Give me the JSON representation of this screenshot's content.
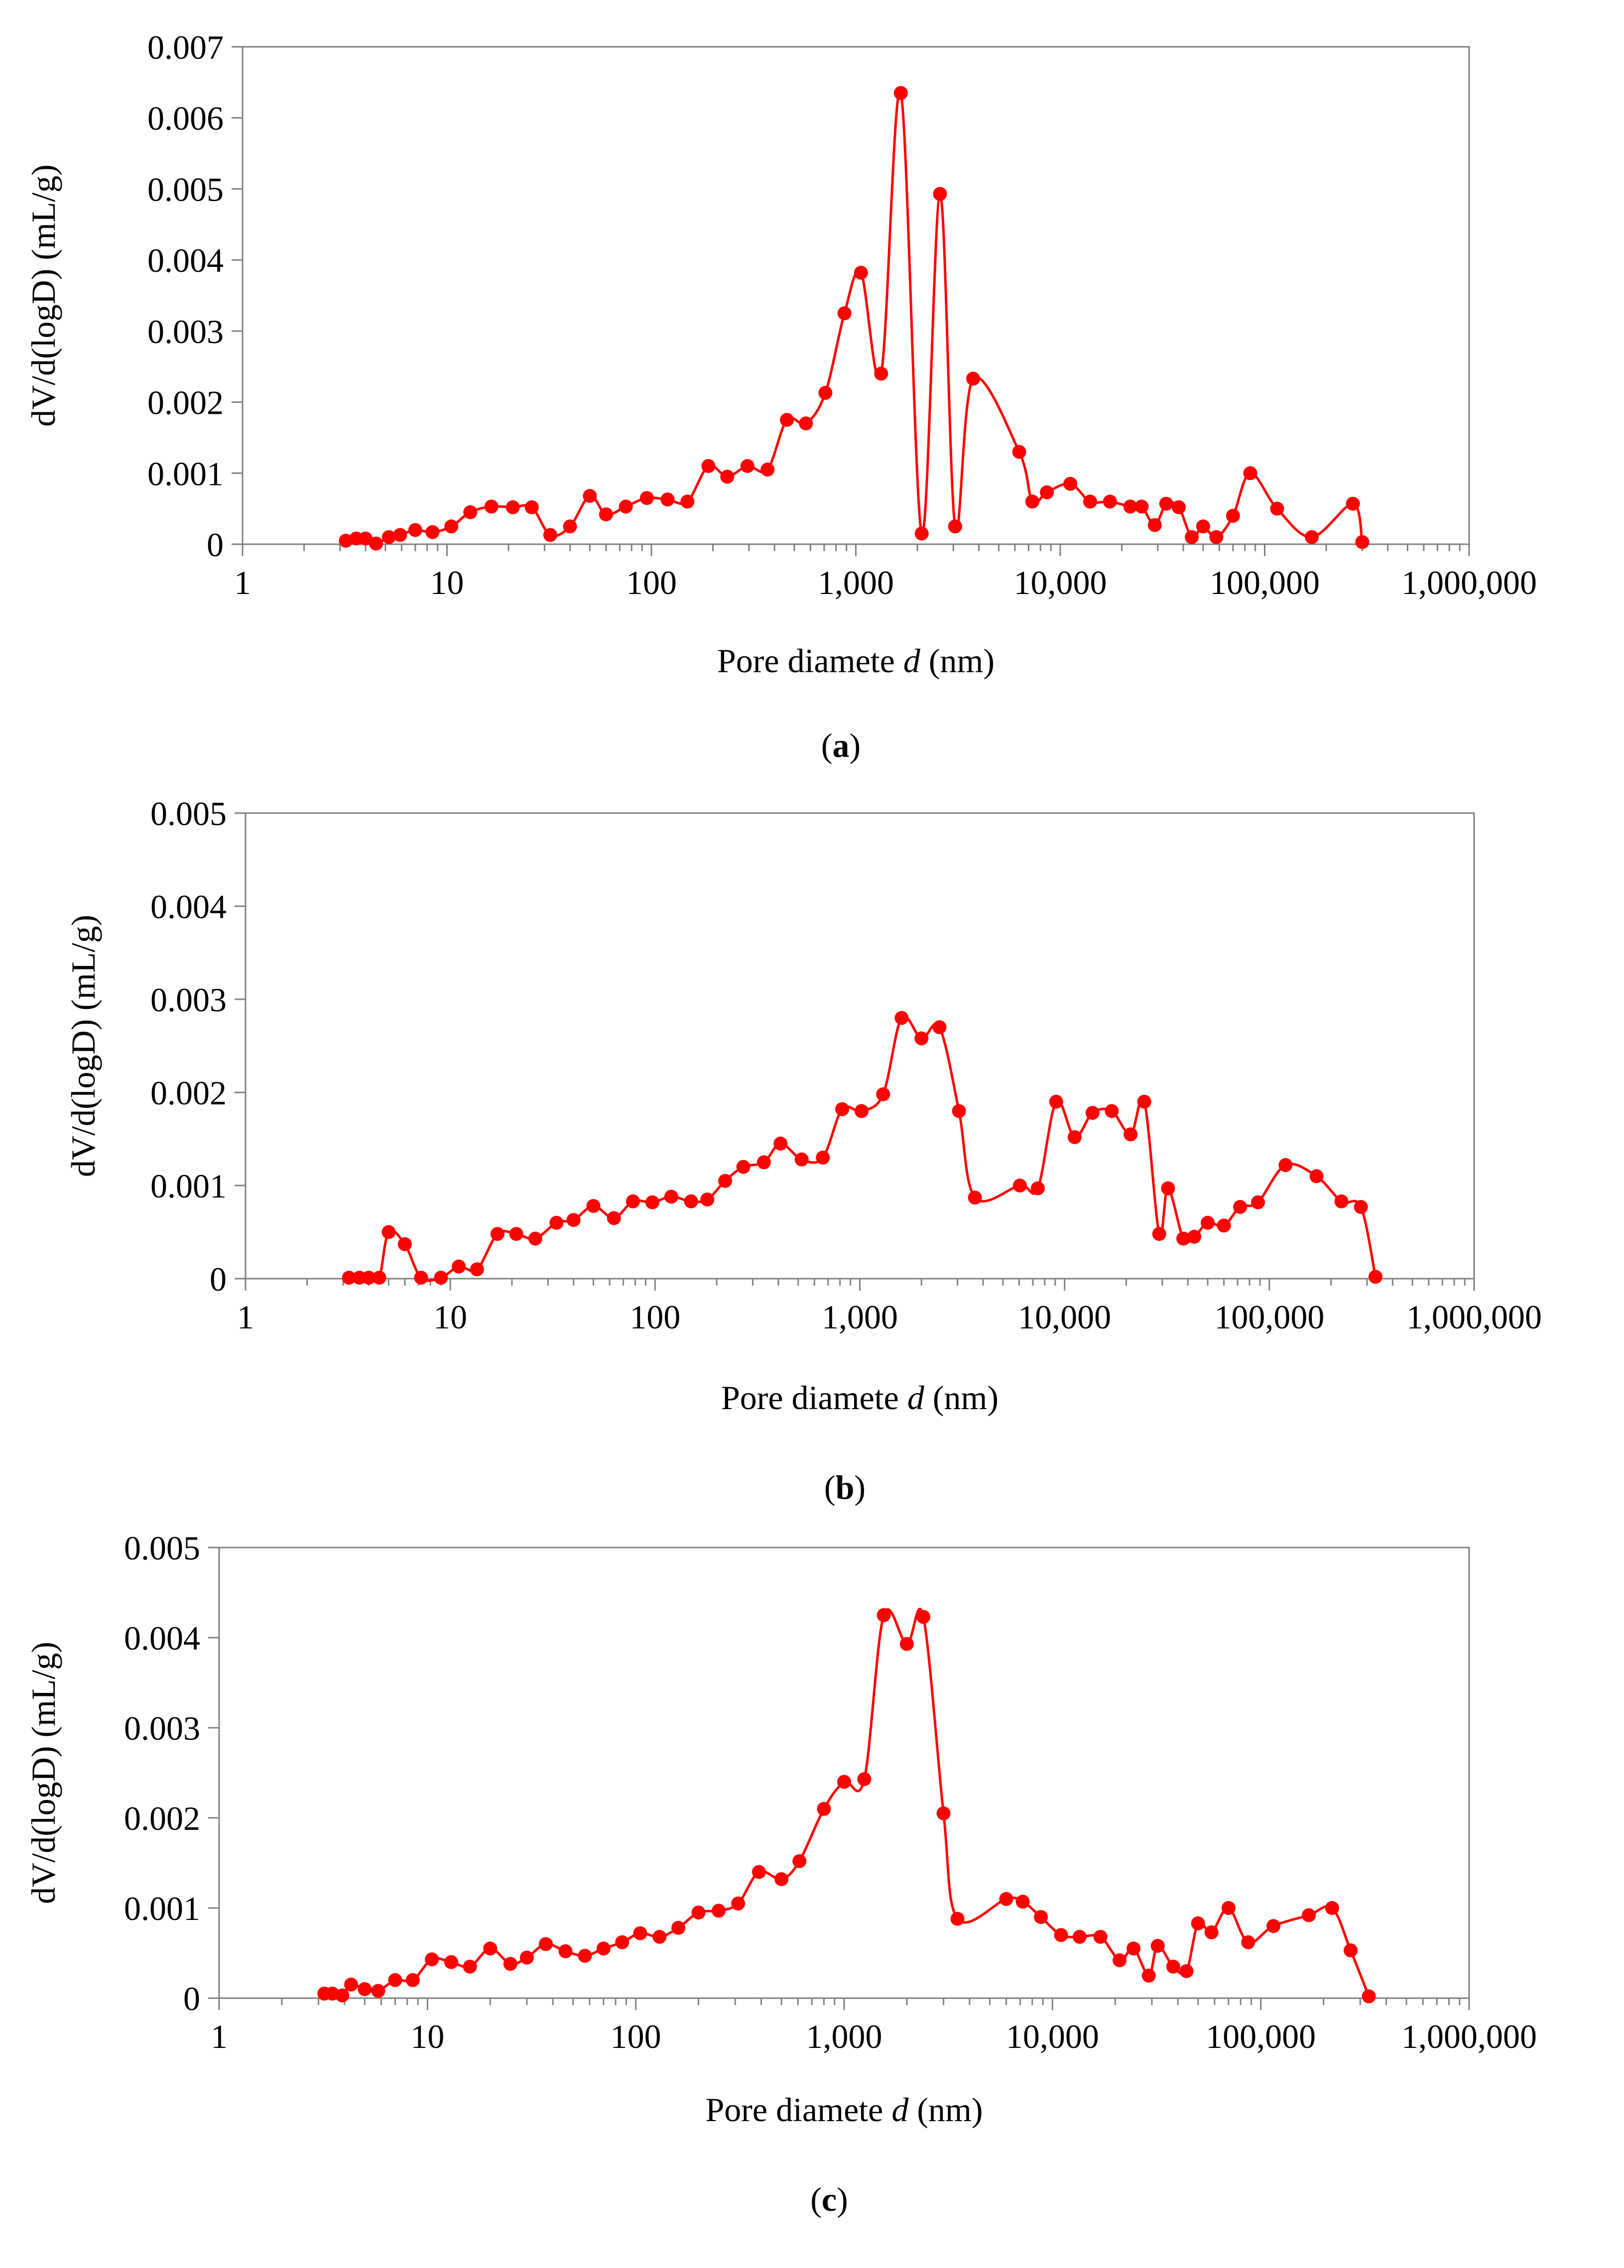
{
  "series_color": "#ff0000",
  "chart_data": [
    {
      "type": "line",
      "caption_letter": "a",
      "xlabel_prefix": "Pore diamete ",
      "xlabel_var": "d",
      "xlabel_suffix": " (nm)",
      "ylabel": "dV/d(logD) (mL/g)",
      "x_scale": "log",
      "xlim": [
        1,
        1000000
      ],
      "ylim": [
        0,
        0.007
      ],
      "xticks": [
        1,
        10,
        100,
        1000,
        10000,
        100000,
        1000000
      ],
      "xtick_labels": [
        "1",
        "10",
        "100",
        "1,000",
        "10,000",
        "100,000",
        "1,000,000"
      ],
      "yticks": [
        0,
        0.001,
        0.002,
        0.003,
        0.004,
        0.005,
        0.006,
        0.007
      ],
      "ytick_labels": [
        "0",
        "0.001",
        "0.002",
        "0.003",
        "0.004",
        "0.005",
        "0.006",
        "0.007"
      ],
      "grid": false,
      "x": [
        3.2,
        3.6,
        4.0,
        4.5,
        5.2,
        5.9,
        7.0,
        8.5,
        10.5,
        13,
        16.5,
        21,
        26,
        32,
        40,
        50,
        60,
        75,
        95,
        120,
        150,
        190,
        235,
        295,
        370,
        460,
        570,
        710,
        880,
        1060,
        1330,
        1660,
        2100,
        2580,
        3060,
        3750,
        6300,
        7300,
        8600,
        11200,
        14000,
        17500,
        22000,
        25000,
        29000,
        33000,
        38000,
        44000,
        50000,
        58000,
        70000,
        85000,
        115000,
        170000,
        270000,
        300000
      ],
      "y": [
        5e-05,
        8e-05,
        8e-05,
        1e-05,
        0.0001,
        0.00013,
        0.0002,
        0.00017,
        0.00025,
        0.00045,
        0.00053,
        0.00052,
        0.00052,
        0.00013,
        0.00025,
        0.00068,
        0.00042,
        0.00053,
        0.00065,
        0.00063,
        0.0006,
        0.0011,
        0.00095,
        0.0011,
        0.00105,
        0.00175,
        0.0017,
        0.00213,
        0.00325,
        0.00382,
        0.0024,
        0.00635,
        0.00015,
        0.00493,
        0.00025,
        0.00233,
        0.0013,
        0.0006,
        0.00073,
        0.00085,
        0.0006,
        0.0006,
        0.00053,
        0.00053,
        0.00027,
        0.00057,
        0.00052,
        0.0001,
        0.00025,
        0.0001,
        0.0004,
        0.001,
        0.0005,
        0.0001,
        0.00057,
        3e-05
      ]
    },
    {
      "type": "line",
      "caption_letter": "b",
      "xlabel_prefix": "Pore diamete ",
      "xlabel_var": "d",
      "xlabel_suffix": " (nm)",
      "ylabel": "dV/d(logD) (mL/g)",
      "x_scale": "log",
      "xlim": [
        1,
        1000000
      ],
      "ylim": [
        0,
        0.005
      ],
      "xticks": [
        1,
        10,
        100,
        1000,
        10000,
        100000,
        1000000
      ],
      "xtick_labels": [
        "1",
        "10",
        "100",
        "1,000",
        "10,000",
        "100,000",
        "1,000,000"
      ],
      "yticks": [
        0,
        0.001,
        0.002,
        0.003,
        0.004,
        0.005
      ],
      "ytick_labels": [
        "0",
        "0.001",
        "0.002",
        "0.003",
        "0.004",
        "0.005"
      ],
      "grid": false,
      "x": [
        3.2,
        3.6,
        4.0,
        4.5,
        5.0,
        6.0,
        7.2,
        9.0,
        11,
        13.5,
        17,
        21,
        26,
        33,
        40,
        50,
        63,
        78,
        97,
        120,
        150,
        180,
        220,
        270,
        340,
        410,
        520,
        660,
        820,
        1020,
        1300,
        1600,
        2000,
        2450,
        3050,
        3650,
        6050,
        7400,
        9100,
        11200,
        13700,
        17000,
        21000,
        24500,
        29000,
        32000,
        38000,
        43000,
        50000,
        60000,
        72000,
        88000,
        120000,
        170000,
        225000,
        280000,
        330000
      ],
      "y": [
        1e-05,
        1e-05,
        1e-05,
        1e-05,
        0.0005,
        0.00037,
        1e-05,
        1e-05,
        0.00013,
        0.0001,
        0.00048,
        0.00048,
        0.00043,
        0.0006,
        0.00063,
        0.00078,
        0.00065,
        0.00083,
        0.00082,
        0.00088,
        0.00083,
        0.00085,
        0.00105,
        0.0012,
        0.00125,
        0.00145,
        0.00128,
        0.0013,
        0.00182,
        0.0018,
        0.00198,
        0.0028,
        0.00258,
        0.0027,
        0.0018,
        0.00087,
        0.001,
        0.00097,
        0.0019,
        0.00152,
        0.00178,
        0.0018,
        0.00155,
        0.0019,
        0.00048,
        0.00097,
        0.00043,
        0.00045,
        0.0006,
        0.00057,
        0.00077,
        0.00082,
        0.00122,
        0.0011,
        0.00083,
        0.00077,
        2e-05
      ]
    },
    {
      "type": "line",
      "caption_letter": "c",
      "xlabel_prefix": "Pore diamete ",
      "xlabel_var": "d",
      "xlabel_suffix": " (nm)",
      "ylabel": "dV/d(logD) (mL/g)",
      "x_scale": "log",
      "xlim": [
        1,
        1000000
      ],
      "ylim": [
        0,
        0.005
      ],
      "xticks": [
        1,
        10,
        100,
        1000,
        10000,
        100000,
        1000000
      ],
      "xtick_labels": [
        "1",
        "10",
        "100",
        "1,000",
        "10,000",
        "100,000",
        "1,000,000"
      ],
      "yticks": [
        0,
        0.001,
        0.002,
        0.003,
        0.004,
        0.005
      ],
      "ytick_labels": [
        "0",
        "0.001",
        "0.002",
        "0.003",
        "0.004",
        "0.005"
      ],
      "grid": false,
      "x": [
        3.2,
        3.5,
        3.9,
        4.3,
        5.0,
        5.8,
        7.0,
        8.5,
        10.5,
        13,
        16,
        20,
        25,
        30,
        37,
        46,
        57,
        70,
        86,
        105,
        130,
        160,
        200,
        250,
        310,
        390,
        500,
        610,
        800,
        1000,
        1250,
        1550,
        2000,
        2400,
        3000,
        3500,
        6000,
        7200,
        8800,
        11000,
        13500,
        17000,
        21000,
        24500,
        29000,
        32000,
        38000,
        44000,
        50000,
        58000,
        70000,
        87000,
        115000,
        170000,
        220000,
        270000,
        330000
      ],
      "y": [
        5e-05,
        5e-05,
        3e-05,
        0.00015,
        0.0001,
        8e-05,
        0.0002,
        0.0002,
        0.00043,
        0.0004,
        0.00035,
        0.00055,
        0.00038,
        0.00045,
        0.0006,
        0.00052,
        0.00047,
        0.00055,
        0.00062,
        0.00072,
        0.00068,
        0.00078,
        0.00095,
        0.00097,
        0.00105,
        0.0014,
        0.00132,
        0.00152,
        0.0021,
        0.0024,
        0.00243,
        0.00425,
        0.00393,
        0.00423,
        0.00205,
        0.00088,
        0.0011,
        0.00107,
        0.0009,
        0.0007,
        0.00068,
        0.00068,
        0.00042,
        0.00055,
        0.00025,
        0.00058,
        0.00035,
        0.0003,
        0.00083,
        0.00073,
        0.001,
        0.00062,
        0.0008,
        0.00092,
        0.001,
        0.00053,
        2e-05
      ]
    }
  ]
}
